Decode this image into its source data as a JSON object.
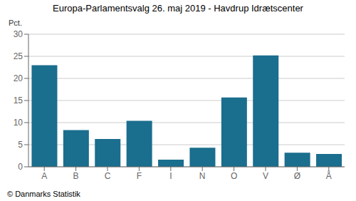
{
  "chart_data": {
    "type": "bar",
    "title": "Europa-Parlamentsvalg 26. maj 2019 - Havdrup Idrætscenter",
    "categories": [
      "A",
      "B",
      "C",
      "F",
      "I",
      "N",
      "O",
      "V",
      "Ø",
      "Å"
    ],
    "values": [
      23.0,
      8.3,
      6.3,
      10.4,
      1.6,
      4.3,
      15.7,
      25.2,
      3.2,
      2.9
    ],
    "color": "#1a6e8e",
    "ylabel": "Pct.",
    "ylim": [
      0,
      30
    ],
    "yticks": [
      0,
      5,
      10,
      15,
      20,
      25,
      30
    ],
    "grid": true,
    "annotations": [
      "© Danmarks Statistik"
    ]
  }
}
